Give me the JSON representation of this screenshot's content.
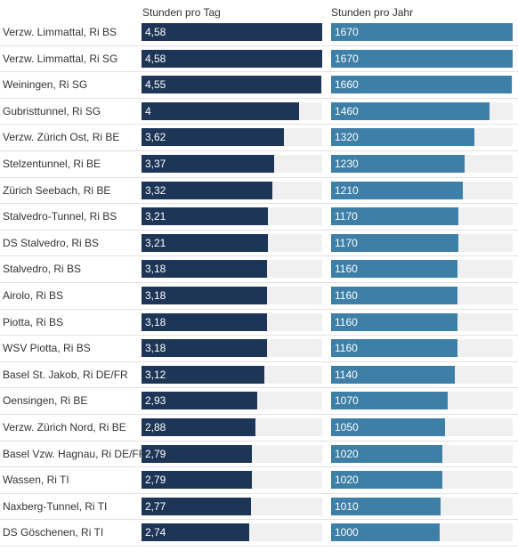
{
  "chart_data": {
    "type": "table",
    "columns": [
      {
        "key": "tag",
        "header": "Stunden pro Tag",
        "max": 4.58,
        "color": "#1d3557"
      },
      {
        "key": "jahr",
        "header": "Stunden pro Jahr",
        "max": 1670,
        "color": "#3d7fa6"
      }
    ],
    "track_color": "#f0f0f0",
    "rows": [
      {
        "label": "Verzw. Limmattal, Ri BS",
        "tag": "4,58",
        "jahr": "1670"
      },
      {
        "label": "Verzw. Limmattal, Ri SG",
        "tag": "4,58",
        "jahr": "1670"
      },
      {
        "label": "Weiningen, Ri SG",
        "tag": "4,55",
        "jahr": "1660"
      },
      {
        "label": "Gubristtunnel, Ri SG",
        "tag": "4",
        "jahr": "1460"
      },
      {
        "label": "Verzw. Zürich Ost, Ri BE",
        "tag": "3,62",
        "jahr": "1320"
      },
      {
        "label": "Stelzentunnel, Ri BE",
        "tag": "3,37",
        "jahr": "1230"
      },
      {
        "label": "Zürich Seebach, Ri BE",
        "tag": "3,32",
        "jahr": "1210"
      },
      {
        "label": "Stalvedro-Tunnel, Ri BS",
        "tag": "3,21",
        "jahr": "1170"
      },
      {
        "label": "DS Stalvedro, Ri BS",
        "tag": "3,21",
        "jahr": "1170"
      },
      {
        "label": "Stalvedro, Ri BS",
        "tag": "3,18",
        "jahr": "1160"
      },
      {
        "label": "Airolo, Ri BS",
        "tag": "3,18",
        "jahr": "1160"
      },
      {
        "label": "Piotta, Ri BS",
        "tag": "3,18",
        "jahr": "1160"
      },
      {
        "label": "WSV Piotta, Ri BS",
        "tag": "3,18",
        "jahr": "1160"
      },
      {
        "label": "Basel St. Jakob, Ri DE/FR",
        "tag": "3,12",
        "jahr": "1140"
      },
      {
        "label": "Oensingen, Ri BE",
        "tag": "2,93",
        "jahr": "1070"
      },
      {
        "label": "Verzw. Zürich Nord, Ri BE",
        "tag": "2,88",
        "jahr": "1050"
      },
      {
        "label": "Basel Vzw. Hagnau, Ri DE/FR",
        "tag": "2,79",
        "jahr": "1020"
      },
      {
        "label": "Wassen, Ri TI",
        "tag": "2,79",
        "jahr": "1020"
      },
      {
        "label": "Naxberg-Tunnel, Ri TI",
        "tag": "2,77",
        "jahr": "1010"
      },
      {
        "label": "DS Göschenen, Ri TI",
        "tag": "2,74",
        "jahr": "1000"
      }
    ]
  }
}
